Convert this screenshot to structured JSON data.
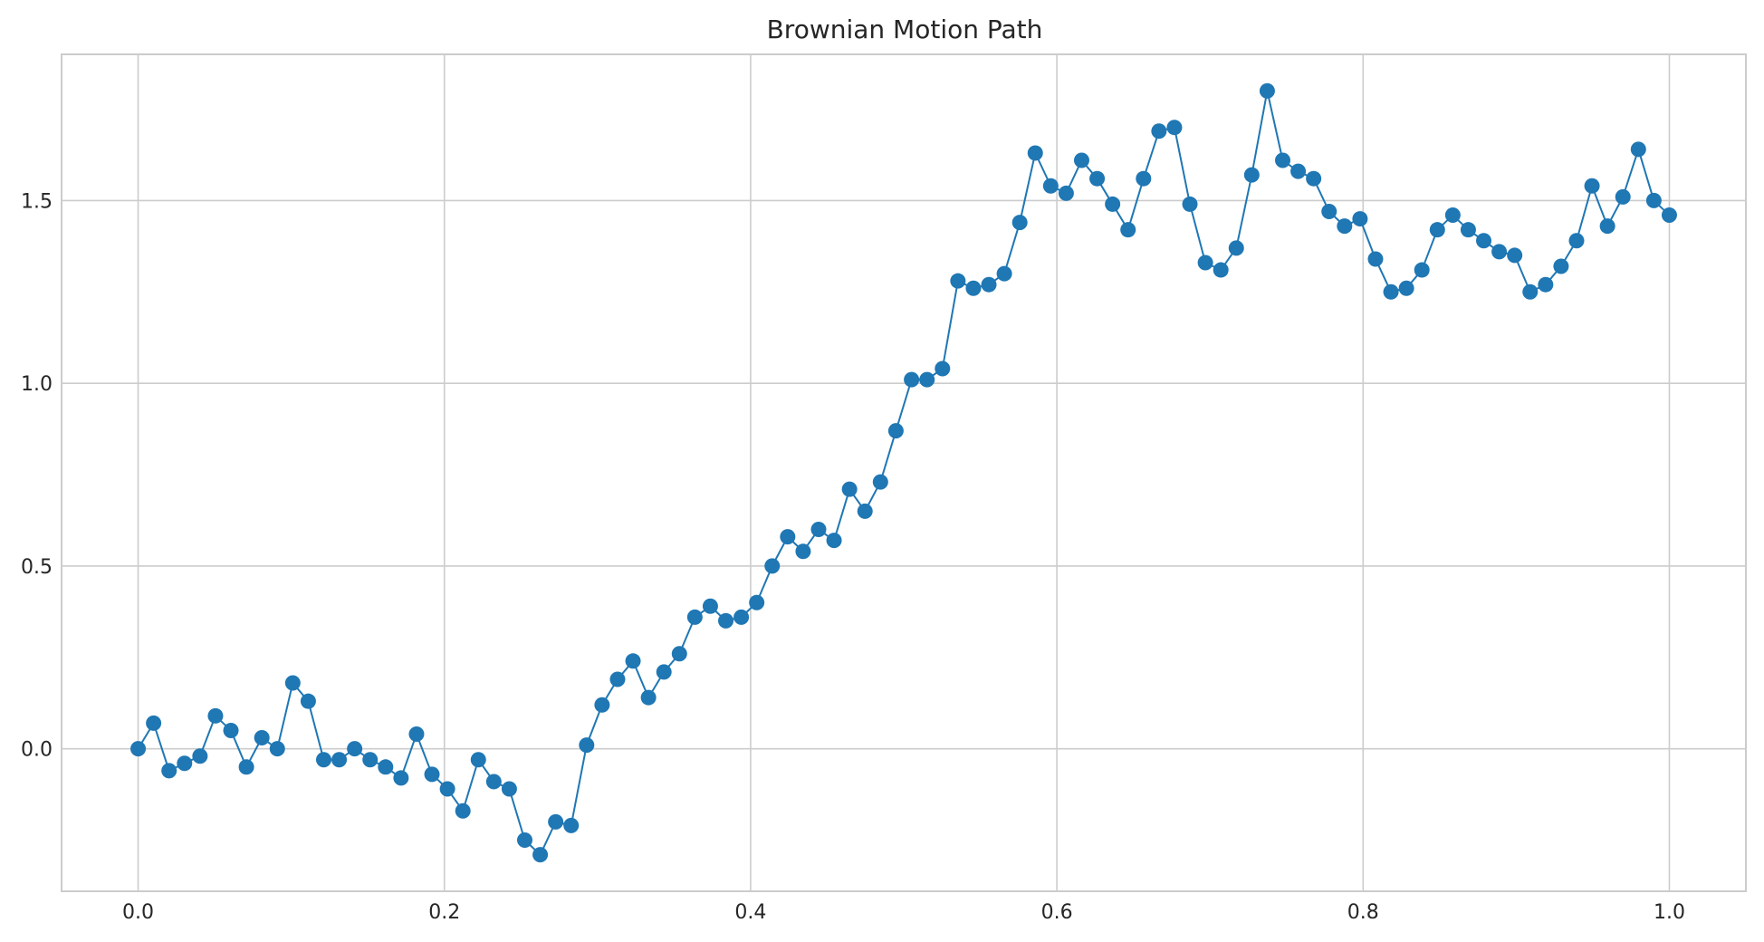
{
  "chart_data": {
    "type": "line",
    "title": "Brownian Motion Path",
    "xlabel": "",
    "ylabel": "",
    "xlim": [
      -0.05,
      1.05
    ],
    "ylim": [
      -0.39,
      1.9
    ],
    "xticks": [
      0.0,
      0.2,
      0.4,
      0.6,
      0.8,
      1.0
    ],
    "xtick_labels": [
      "0.0",
      "0.2",
      "0.4",
      "0.6",
      "0.8",
      "1.0"
    ],
    "yticks": [
      0.0,
      0.5,
      1.0,
      1.5
    ],
    "ytick_labels": [
      "0.0",
      "0.5",
      "1.0",
      "1.5"
    ],
    "grid": true,
    "legend": "none",
    "markers": "circle",
    "series": [
      {
        "color": "#1f77b4",
        "x": [
          0.0,
          0.0101,
          0.0202,
          0.0303,
          0.0404,
          0.0505,
          0.0606,
          0.0707,
          0.0808,
          0.0909,
          0.101,
          0.1111,
          0.1212,
          0.1313,
          0.1414,
          0.1515,
          0.1616,
          0.1717,
          0.1818,
          0.1919,
          0.202,
          0.2121,
          0.2222,
          0.2323,
          0.2424,
          0.2525,
          0.2626,
          0.2727,
          0.2828,
          0.2929,
          0.303,
          0.3131,
          0.3232,
          0.3333,
          0.3434,
          0.3535,
          0.3636,
          0.3737,
          0.3838,
          0.3939,
          0.404,
          0.4141,
          0.4242,
          0.4343,
          0.4444,
          0.4545,
          0.4646,
          0.4747,
          0.4848,
          0.4949,
          0.5051,
          0.5152,
          0.5253,
          0.5354,
          0.5455,
          0.5556,
          0.5657,
          0.5758,
          0.5859,
          0.596,
          0.6061,
          0.6162,
          0.6263,
          0.6364,
          0.6465,
          0.6566,
          0.6667,
          0.6768,
          0.6869,
          0.697,
          0.7071,
          0.7172,
          0.7273,
          0.7374,
          0.7475,
          0.7576,
          0.7677,
          0.7778,
          0.7879,
          0.798,
          0.8081,
          0.8182,
          0.8283,
          0.8384,
          0.8485,
          0.8586,
          0.8687,
          0.8788,
          0.8889,
          0.899,
          0.9091,
          0.9192,
          0.9293,
          0.9394,
          0.9495,
          0.9596,
          0.9697,
          0.9798,
          0.9899,
          1.0
        ],
        "y": [
          0.0,
          0.07,
          -0.06,
          -0.04,
          -0.02,
          0.09,
          0.05,
          -0.05,
          0.03,
          0.0,
          0.18,
          0.13,
          -0.03,
          -0.03,
          0.0,
          -0.03,
          -0.05,
          -0.08,
          0.04,
          -0.07,
          -0.11,
          -0.17,
          -0.03,
          -0.09,
          -0.11,
          -0.25,
          -0.29,
          -0.2,
          -0.21,
          0.01,
          0.12,
          0.19,
          0.24,
          0.14,
          0.21,
          0.26,
          0.36,
          0.39,
          0.35,
          0.36,
          0.4,
          0.5,
          0.58,
          0.54,
          0.6,
          0.57,
          0.71,
          0.65,
          0.73,
          0.87,
          1.01,
          1.01,
          1.04,
          1.28,
          1.26,
          1.27,
          1.3,
          1.44,
          1.63,
          1.54,
          1.52,
          1.61,
          1.56,
          1.49,
          1.42,
          1.56,
          1.69,
          1.7,
          1.49,
          1.33,
          1.31,
          1.37,
          1.57,
          1.8,
          1.61,
          1.58,
          1.56,
          1.47,
          1.43,
          1.45,
          1.34,
          1.25,
          1.26,
          1.31,
          1.42,
          1.46,
          1.42,
          1.39,
          1.36,
          1.35,
          1.25,
          1.27,
          1.32,
          1.39,
          1.54,
          1.43,
          1.51,
          1.64,
          1.5,
          1.46
        ]
      }
    ]
  }
}
